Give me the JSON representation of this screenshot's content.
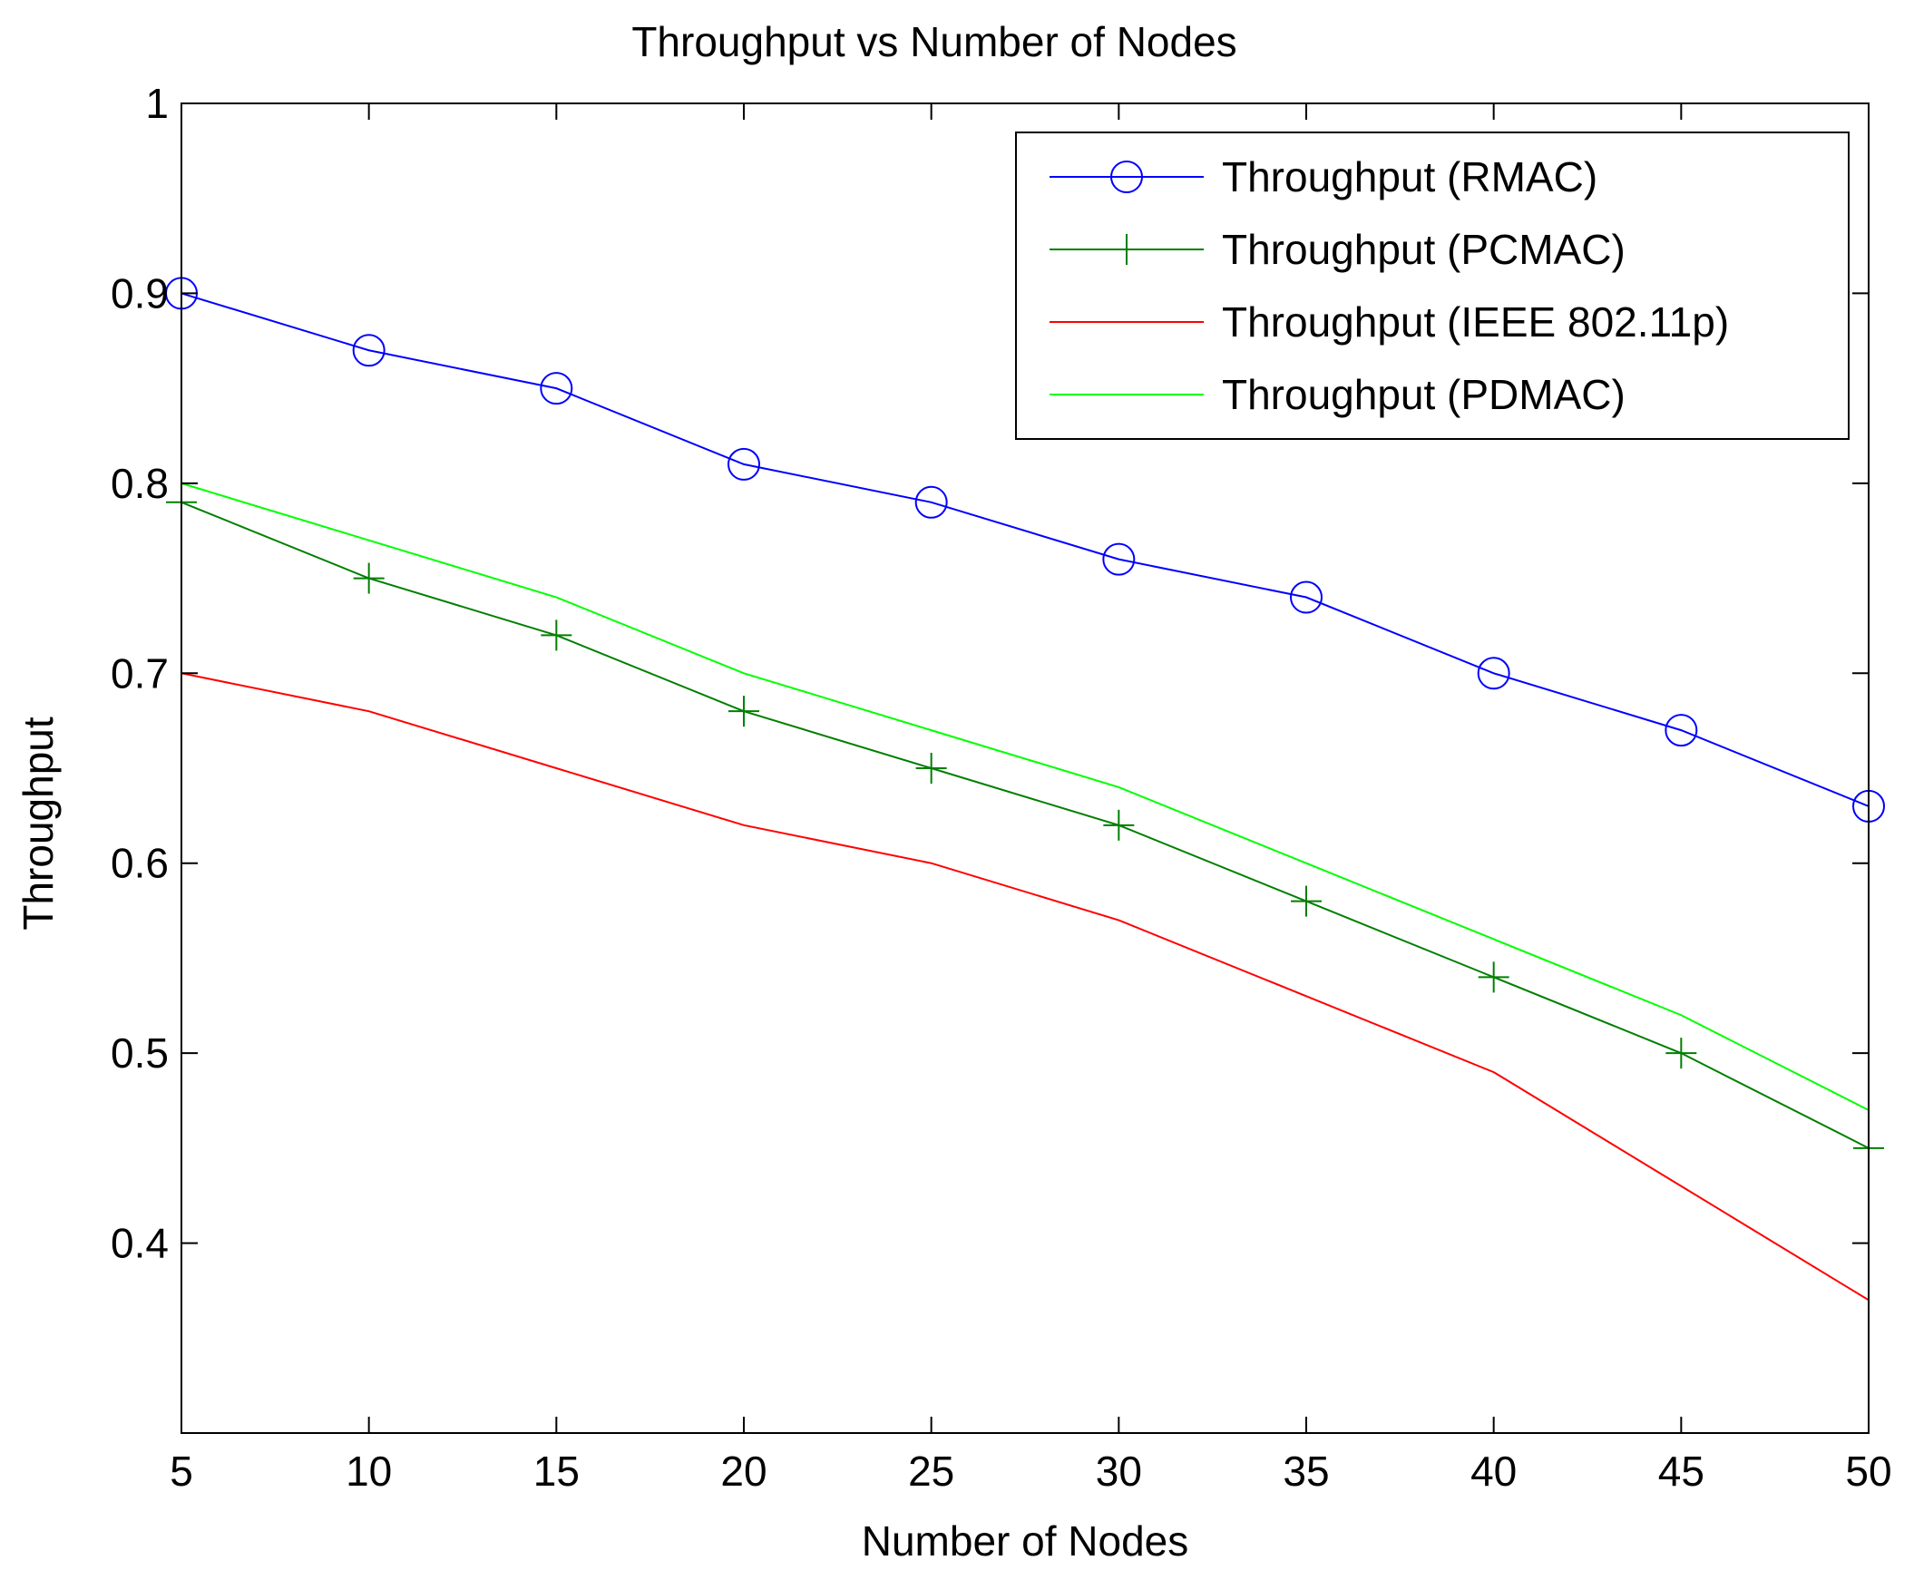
{
  "chart_data": {
    "type": "line",
    "title": "Throughput vs Number of Nodes",
    "xlabel": "Number of Nodes",
    "ylabel": "Throughput",
    "x": [
      5,
      10,
      15,
      20,
      25,
      30,
      35,
      40,
      45,
      50
    ],
    "xlim": [
      5,
      50
    ],
    "ylim": [
      0.3,
      1.0
    ],
    "xticks": [
      5,
      10,
      15,
      20,
      25,
      30,
      35,
      40,
      45,
      50
    ],
    "yticks": [
      0.4,
      0.5,
      0.6,
      0.7,
      0.8,
      0.9,
      1.0
    ],
    "ytick_labels": [
      "0.4",
      "0.5",
      "0.6",
      "0.7",
      "0.8",
      "0.9",
      "1"
    ],
    "grid": false,
    "legend_position": "top-right",
    "series": [
      {
        "name": "Throughput (RMAC)",
        "color": "#0000ff",
        "marker": "circle",
        "values": [
          0.9,
          0.87,
          0.85,
          0.81,
          0.79,
          0.76,
          0.74,
          0.7,
          0.67,
          0.63
        ]
      },
      {
        "name": "Throughput (PCMAC)",
        "color": "#007f00",
        "marker": "plus",
        "values": [
          0.79,
          0.75,
          0.72,
          0.68,
          0.65,
          0.62,
          0.58,
          0.54,
          0.5,
          0.45
        ]
      },
      {
        "name": "Throughput (IEEE 802.11p)",
        "color": "#ff0000",
        "marker": "none",
        "values": [
          0.7,
          0.68,
          0.65,
          0.62,
          0.6,
          0.57,
          0.53,
          0.49,
          0.43,
          0.37
        ]
      },
      {
        "name": "Throughput (PDMAC)",
        "color": "#00ff00",
        "marker": "none",
        "values": [
          0.8,
          0.77,
          0.74,
          0.7,
          0.67,
          0.64,
          0.6,
          0.56,
          0.52,
          0.47
        ]
      }
    ]
  }
}
